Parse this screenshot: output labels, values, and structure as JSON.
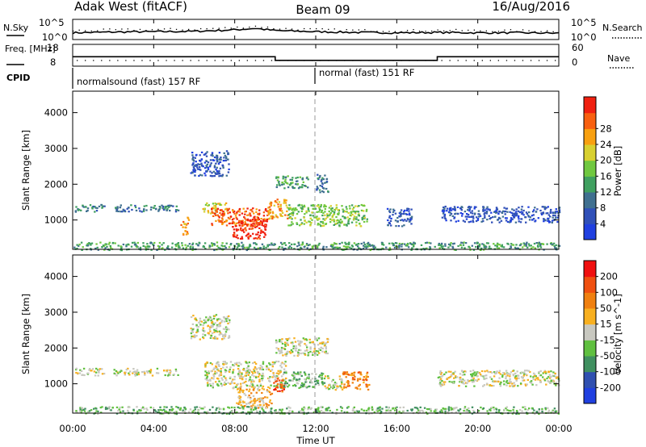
{
  "header": {
    "left": "Adak West (fitACF)",
    "center": "Beam 09",
    "right": "16/Aug/2016"
  },
  "chart_data": [
    {
      "type": "line",
      "panel": "noise",
      "left_label": "N.Sky",
      "right_label": "N.Search",
      "left_ticks": [
        "10^5",
        "10^0"
      ],
      "right_ticks": [
        "10^5",
        "10^0"
      ],
      "x": [
        0,
        2,
        4,
        6,
        8,
        9,
        10,
        12,
        14,
        16,
        18,
        20,
        22,
        24
      ],
      "n_sky": [
        1.6,
        1.8,
        1.9,
        2.0,
        2.4,
        2.8,
        2.2,
        1.9,
        1.7,
        1.6,
        1.7,
        1.6,
        1.6,
        1.5
      ],
      "ylim": [
        0,
        5
      ]
    },
    {
      "type": "line",
      "panel": "frequency",
      "left_label": "Freq. [MHz]",
      "right_label": "Nave",
      "left_ticks": [
        "18",
        "8"
      ],
      "right_ticks": [
        "60",
        "0"
      ],
      "freq_steps": [
        {
          "start": 0,
          "end": 10,
          "value": 12.3
        },
        {
          "start": 10,
          "end": 18,
          "value": 10.5
        },
        {
          "start": 18,
          "end": 24,
          "value": 12.3
        }
      ],
      "nave": 16,
      "ylim": [
        8,
        18
      ]
    },
    {
      "type": "table",
      "panel": "cpid",
      "label": "CPID",
      "segments": [
        {
          "start": 0,
          "end": 12,
          "text": "normalsound (fast) 157 RF"
        },
        {
          "start": 12,
          "end": 24,
          "text": "normal (fast) 151 RF"
        }
      ]
    },
    {
      "type": "heatmap",
      "panel": "power",
      "ylabel": "Slant Range [km]",
      "yticks": [
        1000,
        2000,
        3000,
        4000
      ],
      "ylim": [
        180,
        4600
      ],
      "colorbar_label": "Power [dB]",
      "colorbar_ticks": [
        "4",
        "8",
        "12",
        "16",
        "20",
        "24",
        "28"
      ],
      "colorbar_colors": [
        "#2040e0",
        "#3050b8",
        "#407090",
        "#40a060",
        "#70c840",
        "#d8d030",
        "#f8a010",
        "#f86010",
        "#f02010"
      ],
      "features": [
        {
          "t0": 0.1,
          "t1": 1.6,
          "r0": 1250,
          "r1": 1450,
          "level": 2
        },
        {
          "t0": 2.0,
          "t1": 5.2,
          "r0": 1250,
          "r1": 1450,
          "level": 2
        },
        {
          "t0": 5.3,
          "t1": 5.7,
          "r0": 600,
          "r1": 1100,
          "level": 6
        },
        {
          "t0": 5.8,
          "t1": 7.7,
          "r0": 2250,
          "r1": 2950,
          "level": 1
        },
        {
          "t0": 6.4,
          "t1": 7.6,
          "r0": 1200,
          "r1": 1500,
          "level": 5
        },
        {
          "t0": 6.8,
          "t1": 9.6,
          "r0": 850,
          "r1": 1350,
          "level": 7
        },
        {
          "t0": 7.8,
          "t1": 9.6,
          "r0": 500,
          "r1": 1050,
          "level": 8
        },
        {
          "t0": 9.6,
          "t1": 10.6,
          "r0": 1050,
          "r1": 1600,
          "level": 6
        },
        {
          "t0": 10.6,
          "t1": 14.5,
          "r0": 850,
          "r1": 1450,
          "level": 4
        },
        {
          "t0": 10.0,
          "t1": 11.7,
          "r0": 1900,
          "r1": 2250,
          "level": 3
        },
        {
          "t0": 12.0,
          "t1": 12.6,
          "r0": 1800,
          "r1": 2300,
          "level": 2
        },
        {
          "t0": 15.5,
          "t1": 16.7,
          "r0": 850,
          "r1": 1350,
          "level": 1
        },
        {
          "t0": 18.2,
          "t1": 24.0,
          "r0": 950,
          "r1": 1400,
          "level": 1
        },
        {
          "t0": 0.0,
          "t1": 24.0,
          "r0": 180,
          "r1": 400,
          "level": 3
        }
      ]
    },
    {
      "type": "heatmap",
      "panel": "velocity",
      "ylabel": "Slant Range [km]",
      "yticks": [
        1000,
        2000,
        3000,
        4000
      ],
      "ylim": [
        180,
        4600
      ],
      "colorbar_label": "Velocity [m s^-1]",
      "colorbar_ticks": [
        "200",
        "100",
        "50",
        "15",
        "-15",
        "-50",
        "-100",
        "-200"
      ],
      "colorbar_colors": [
        "#2040e0",
        "#3050b0",
        "#409060",
        "#60c040",
        "#c8c8c0",
        "#f8b020",
        "#f08010",
        "#f05010",
        "#f01010"
      ],
      "features": [
        {
          "t0": 0.1,
          "t1": 1.6,
          "r0": 1250,
          "r1": 1450,
          "level": 4
        },
        {
          "t0": 2.0,
          "t1": 5.2,
          "r0": 1250,
          "r1": 1450,
          "level": 4
        },
        {
          "t0": 5.8,
          "t1": 7.7,
          "r0": 2250,
          "r1": 2950,
          "level": 4
        },
        {
          "t0": 6.5,
          "t1": 10.5,
          "r0": 900,
          "r1": 1650,
          "level": 4
        },
        {
          "t0": 8.0,
          "t1": 9.8,
          "r0": 350,
          "r1": 900,
          "level": 5
        },
        {
          "t0": 9.8,
          "t1": 10.4,
          "r0": 800,
          "r1": 1200,
          "level": 7
        },
        {
          "t0": 10.4,
          "t1": 12.4,
          "r0": 900,
          "r1": 1350,
          "level": 3
        },
        {
          "t0": 12.4,
          "t1": 13.3,
          "r0": 850,
          "r1": 1250,
          "level": 4
        },
        {
          "t0": 13.3,
          "t1": 14.6,
          "r0": 850,
          "r1": 1350,
          "level": 6
        },
        {
          "t0": 10.0,
          "t1": 12.6,
          "r0": 1800,
          "r1": 2300,
          "level": 4
        },
        {
          "t0": 18.0,
          "t1": 24.0,
          "r0": 950,
          "r1": 1400,
          "level": 4
        },
        {
          "t0": 0.0,
          "t1": 24.0,
          "r0": 180,
          "r1": 380,
          "level": 3
        }
      ]
    }
  ],
  "x_axis": {
    "label": "Time UT",
    "ticks": [
      "00:00",
      "04:00",
      "08:00",
      "12:00",
      "16:00",
      "20:00",
      "00:00"
    ],
    "tick_hours": [
      0,
      4,
      8,
      12,
      16,
      20,
      24
    ],
    "range": [
      0,
      24
    ]
  }
}
